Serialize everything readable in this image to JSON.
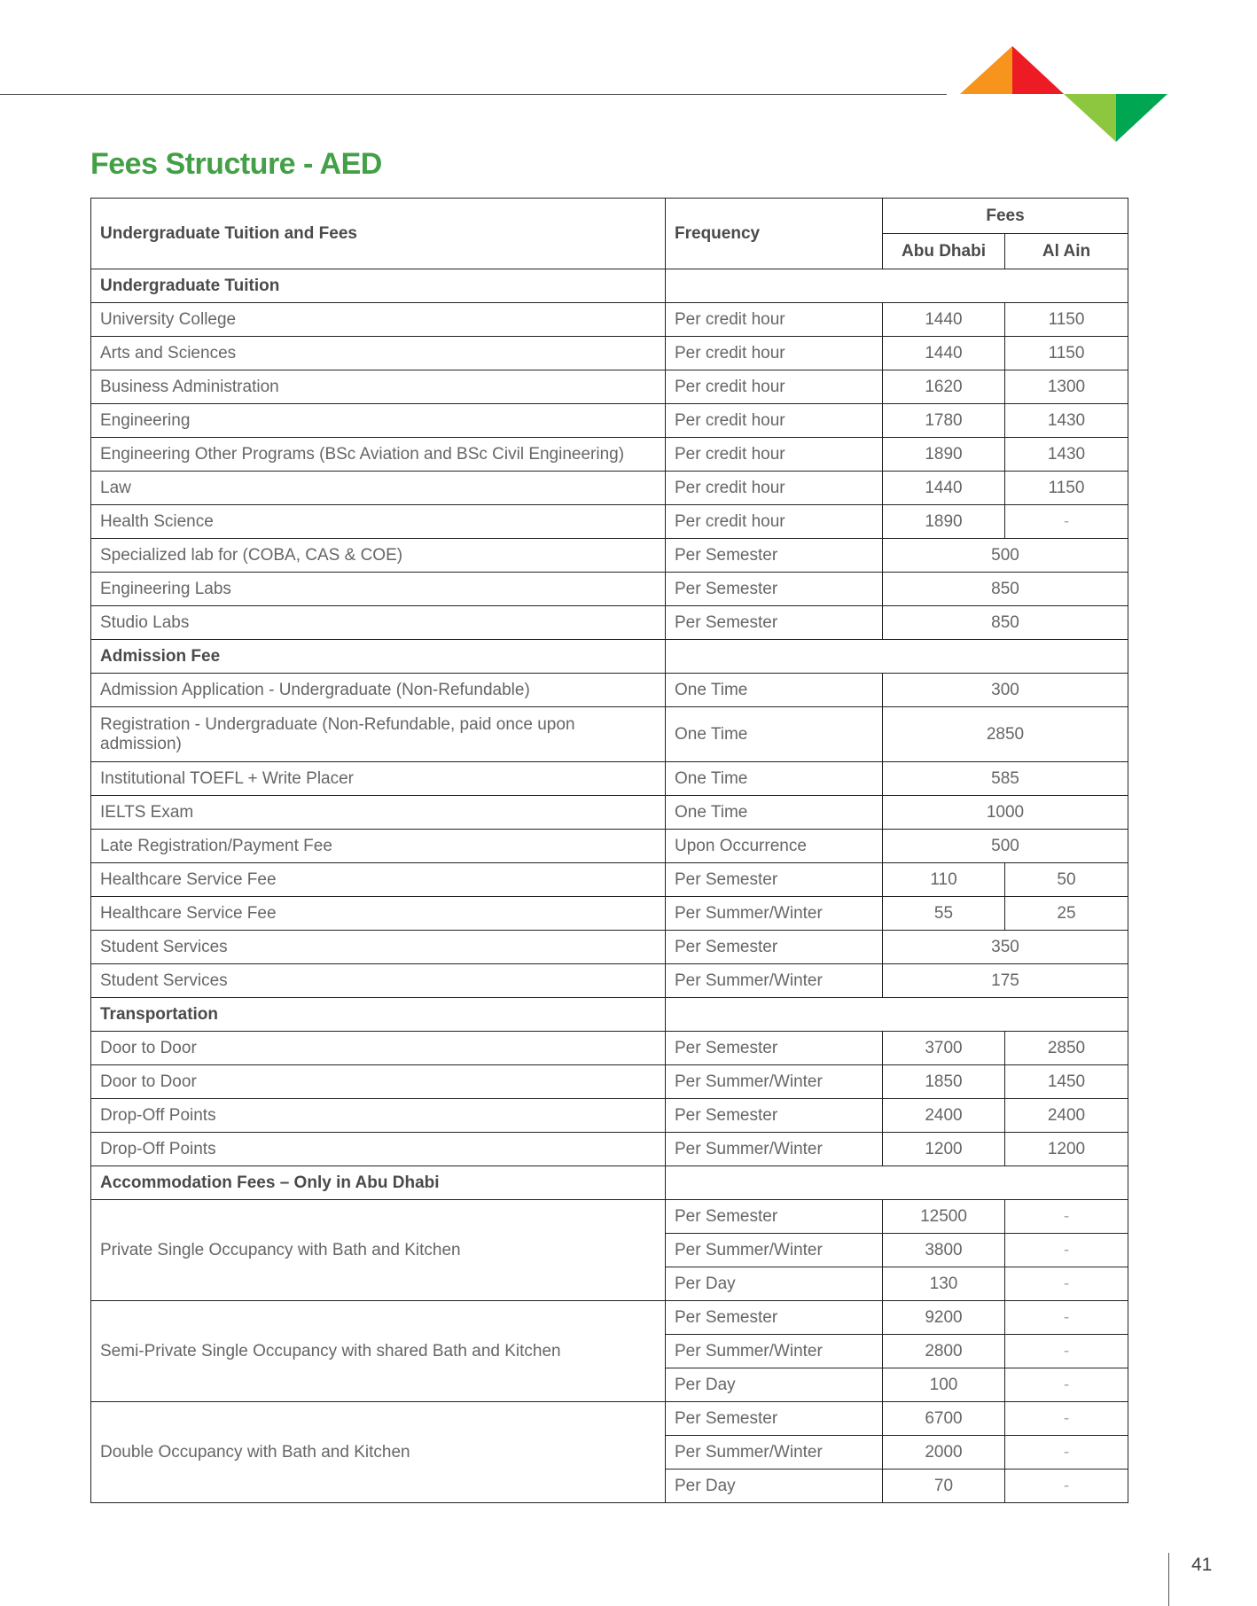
{
  "colors": {
    "title": "#43a047",
    "logo": [
      "#f7941d",
      "#ed1c24",
      "#8dc63f",
      "#00a651"
    ]
  },
  "title": "Fees Structure - AED",
  "page_number": "41",
  "header": {
    "col1": "Undergraduate Tuition and Fees",
    "col2": "Frequency",
    "fees": "Fees",
    "abu_dhabi": "Abu Dhabi",
    "al_ain": "Al Ain"
  },
  "rows": [
    {
      "type": "section",
      "label": "Undergraduate Tuition"
    },
    {
      "type": "split",
      "label": "University College",
      "freq": "Per credit hour",
      "ad": "1440",
      "aa": "1150"
    },
    {
      "type": "split",
      "label": "Arts and Sciences",
      "freq": "Per credit hour",
      "ad": "1440",
      "aa": "1150"
    },
    {
      "type": "split",
      "label": "Business Administration",
      "freq": "Per credit hour",
      "ad": "1620",
      "aa": "1300"
    },
    {
      "type": "split",
      "label": "Engineering",
      "freq": "Per credit hour",
      "ad": "1780",
      "aa": "1430"
    },
    {
      "type": "split",
      "label": "Engineering Other Programs (BSc Aviation and BSc Civil Engineering)",
      "freq": "Per credit hour",
      "ad": "1890",
      "aa": "1430"
    },
    {
      "type": "split",
      "label": "Law",
      "freq": "Per credit hour",
      "ad": "1440",
      "aa": "1150"
    },
    {
      "type": "split",
      "label": "Health Science",
      "freq": "Per credit hour",
      "ad": "1890",
      "aa": "-"
    },
    {
      "type": "merged",
      "label": "Specialized lab for (COBA, CAS & COE)",
      "freq": "Per Semester",
      "value": "500"
    },
    {
      "type": "merged",
      "label": "Engineering Labs",
      "freq": "Per Semester",
      "value": "850"
    },
    {
      "type": "merged",
      "label": "Studio Labs",
      "freq": "Per Semester",
      "value": "850"
    },
    {
      "type": "section",
      "label": "Admission Fee"
    },
    {
      "type": "merged",
      "label": "Admission Application - Undergraduate (Non-Refundable)",
      "freq": "One Time",
      "value": "300"
    },
    {
      "type": "merged",
      "tall": true,
      "label": "Registration - Undergraduate (Non-Refundable, paid once upon admission)",
      "freq": "One Time",
      "value": "2850"
    },
    {
      "type": "merged",
      "label": "Institutional TOEFL + Write Placer",
      "freq": "One Time",
      "value": "585"
    },
    {
      "type": "merged",
      "label": "IELTS Exam",
      "freq": "One Time",
      "value": "1000"
    },
    {
      "type": "merged",
      "label": "Late Registration/Payment Fee",
      "freq": "Upon Occurrence",
      "value": "500"
    },
    {
      "type": "split",
      "label": "Healthcare Service Fee",
      "freq": "Per Semester",
      "ad": "110",
      "aa": "50"
    },
    {
      "type": "split",
      "label": "Healthcare Service Fee",
      "freq": "Per Summer/Winter",
      "ad": "55",
      "aa": "25"
    },
    {
      "type": "merged",
      "label": "Student Services",
      "freq": "Per Semester",
      "value": "350"
    },
    {
      "type": "merged",
      "label": "Student Services",
      "freq": "Per Summer/Winter",
      "value": "175"
    },
    {
      "type": "section",
      "label": "Transportation"
    },
    {
      "type": "split",
      "label": "Door to Door",
      "freq": "Per Semester",
      "ad": "3700",
      "aa": "2850"
    },
    {
      "type": "split",
      "label": "Door to Door",
      "freq": "Per Summer/Winter",
      "ad": "1850",
      "aa": "1450"
    },
    {
      "type": "split",
      "label": "Drop-Off Points",
      "freq": "Per Semester",
      "ad": "2400",
      "aa": "2400"
    },
    {
      "type": "split",
      "label": "Drop-Off Points",
      "freq": "Per Summer/Winter",
      "ad": "1200",
      "aa": "1200"
    },
    {
      "type": "section",
      "label": "Accommodation Fees – Only in Abu Dhabi"
    },
    {
      "type": "group",
      "label": "Private Single Occupancy with Bath and Kitchen",
      "items": [
        {
          "freq": "Per Semester",
          "ad": "12500",
          "aa": "-"
        },
        {
          "freq": "Per Summer/Winter",
          "ad": "3800",
          "aa": "-"
        },
        {
          "freq": "Per Day",
          "ad": "130",
          "aa": "-"
        }
      ]
    },
    {
      "type": "group",
      "label": "Semi-Private Single Occupancy with shared Bath and Kitchen",
      "items": [
        {
          "freq": "Per Semester",
          "ad": "9200",
          "aa": "-"
        },
        {
          "freq": "Per Summer/Winter",
          "ad": "2800",
          "aa": "-"
        },
        {
          "freq": "Per Day",
          "ad": "100",
          "aa": "-"
        }
      ]
    },
    {
      "type": "group",
      "label": "Double Occupancy with Bath and Kitchen",
      "items": [
        {
          "freq": "Per Semester",
          "ad": "6700",
          "aa": "-"
        },
        {
          "freq": "Per Summer/Winter",
          "ad": "2000",
          "aa": "-"
        },
        {
          "freq": "Per Day",
          "ad": "70",
          "aa": "-"
        }
      ]
    }
  ]
}
